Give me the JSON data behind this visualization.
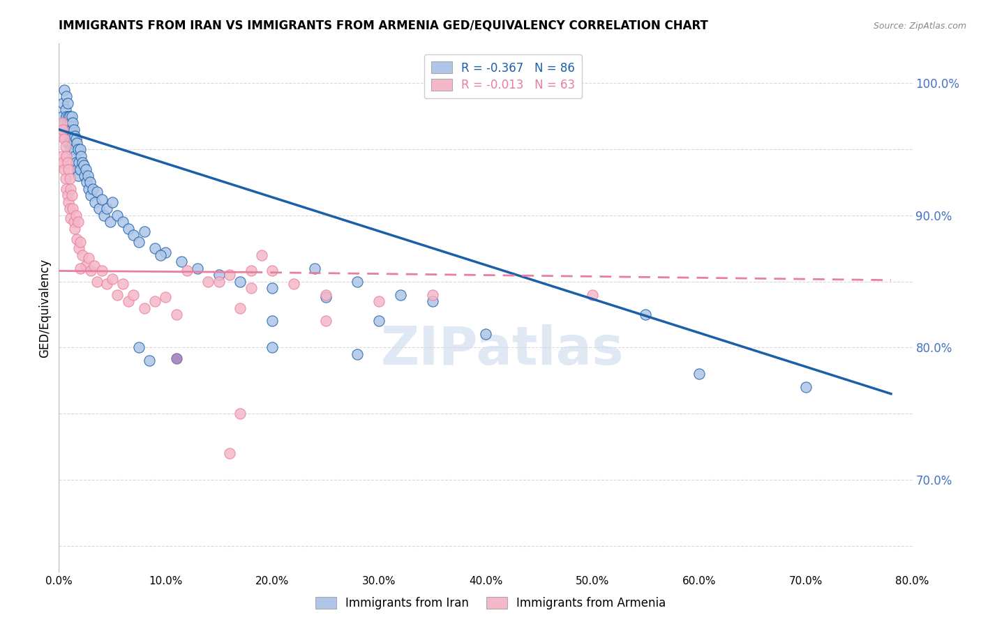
{
  "title": "IMMIGRANTS FROM IRAN VS IMMIGRANTS FROM ARMENIA GED/EQUIVALENCY CORRELATION CHART",
  "source": "Source: ZipAtlas.com",
  "ylabel": "GED/Equivalency",
  "ytick_vals": [
    1.0,
    0.9,
    0.8,
    0.7
  ],
  "ytick_labels": [
    "100.0%",
    "90.0%",
    "80.0%",
    "70.0%"
  ],
  "xtick_vals": [
    0.0,
    0.1,
    0.2,
    0.3,
    0.4,
    0.5,
    0.6,
    0.7,
    0.8
  ],
  "xtick_labels": [
    "0.0%",
    "10.0%",
    "20.0%",
    "30.0%",
    "40.0%",
    "50.0%",
    "60.0%",
    "70.0%",
    "80.0%"
  ],
  "xlim": [
    0.0,
    0.8
  ],
  "ylim": [
    0.63,
    1.03
  ],
  "legend_iran_r": "R = -0.367",
  "legend_iran_n": "N = 86",
  "legend_armenia_r": "R = -0.013",
  "legend_armenia_n": "N = 63",
  "iran_color": "#aec6e8",
  "armenia_color": "#f4b8c8",
  "iran_line_color": "#1a5fa8",
  "armenia_line_color": "#e87fa0",
  "watermark": "ZIPatlas",
  "watermark_color": "#ccdaec",
  "iran_trend_x": [
    0.0,
    0.78
  ],
  "iran_trend_y": [
    0.965,
    0.765
  ],
  "armenia_trend_x": [
    0.0,
    0.78
  ],
  "armenia_trend_y": [
    0.858,
    0.851
  ],
  "iran_x": [
    0.003,
    0.004,
    0.004,
    0.005,
    0.005,
    0.006,
    0.006,
    0.007,
    0.007,
    0.007,
    0.008,
    0.008,
    0.008,
    0.009,
    0.009,
    0.01,
    0.01,
    0.01,
    0.011,
    0.011,
    0.012,
    0.012,
    0.013,
    0.013,
    0.013,
    0.014,
    0.014,
    0.015,
    0.015,
    0.016,
    0.016,
    0.017,
    0.017,
    0.018,
    0.018,
    0.019,
    0.02,
    0.02,
    0.021,
    0.022,
    0.023,
    0.024,
    0.025,
    0.026,
    0.027,
    0.028,
    0.029,
    0.03,
    0.032,
    0.034,
    0.036,
    0.038,
    0.04,
    0.042,
    0.045,
    0.048,
    0.05,
    0.055,
    0.06,
    0.065,
    0.07,
    0.075,
    0.08,
    0.09,
    0.1,
    0.115,
    0.13,
    0.15,
    0.17,
    0.2,
    0.24,
    0.28,
    0.32,
    0.2,
    0.35,
    0.4,
    0.25,
    0.3,
    0.55,
    0.7,
    0.075,
    0.085,
    0.095,
    0.2,
    0.28,
    0.6
  ],
  "iran_y": [
    0.975,
    0.985,
    0.96,
    0.97,
    0.995,
    0.965,
    0.98,
    0.975,
    0.96,
    0.99,
    0.97,
    0.985,
    0.955,
    0.975,
    0.96,
    0.975,
    0.965,
    0.955,
    0.97,
    0.95,
    0.965,
    0.975,
    0.96,
    0.97,
    0.955,
    0.965,
    0.95,
    0.96,
    0.945,
    0.958,
    0.94,
    0.955,
    0.935,
    0.95,
    0.93,
    0.94,
    0.95,
    0.935,
    0.945,
    0.94,
    0.938,
    0.93,
    0.935,
    0.925,
    0.93,
    0.92,
    0.925,
    0.915,
    0.92,
    0.91,
    0.918,
    0.905,
    0.912,
    0.9,
    0.905,
    0.895,
    0.91,
    0.9,
    0.895,
    0.89,
    0.885,
    0.88,
    0.888,
    0.875,
    0.872,
    0.865,
    0.86,
    0.855,
    0.85,
    0.845,
    0.86,
    0.85,
    0.84,
    0.8,
    0.835,
    0.81,
    0.838,
    0.82,
    0.825,
    0.77,
    0.8,
    0.79,
    0.87,
    0.82,
    0.795,
    0.78
  ],
  "armenia_x": [
    0.002,
    0.003,
    0.003,
    0.004,
    0.004,
    0.005,
    0.005,
    0.006,
    0.006,
    0.007,
    0.007,
    0.008,
    0.008,
    0.009,
    0.009,
    0.01,
    0.01,
    0.011,
    0.011,
    0.012,
    0.013,
    0.014,
    0.015,
    0.016,
    0.017,
    0.018,
    0.019,
    0.02,
    0.022,
    0.025,
    0.028,
    0.03,
    0.033,
    0.036,
    0.04,
    0.045,
    0.05,
    0.055,
    0.06,
    0.065,
    0.07,
    0.08,
    0.09,
    0.1,
    0.11,
    0.12,
    0.14,
    0.16,
    0.18,
    0.22,
    0.25,
    0.19,
    0.17,
    0.15,
    0.25,
    0.3,
    0.18,
    0.5,
    0.2,
    0.35,
    0.17,
    0.02,
    0.16
  ],
  "armenia_y": [
    0.96,
    0.97,
    0.945,
    0.965,
    0.94,
    0.958,
    0.935,
    0.952,
    0.928,
    0.945,
    0.92,
    0.94,
    0.915,
    0.935,
    0.91,
    0.928,
    0.905,
    0.92,
    0.898,
    0.915,
    0.905,
    0.895,
    0.89,
    0.9,
    0.882,
    0.895,
    0.875,
    0.88,
    0.87,
    0.862,
    0.868,
    0.858,
    0.862,
    0.85,
    0.858,
    0.848,
    0.852,
    0.84,
    0.848,
    0.835,
    0.84,
    0.83,
    0.835,
    0.838,
    0.825,
    0.858,
    0.85,
    0.855,
    0.845,
    0.848,
    0.84,
    0.87,
    0.83,
    0.85,
    0.82,
    0.835,
    0.858,
    0.84,
    0.858,
    0.84,
    0.75,
    0.86,
    0.72
  ],
  "purple_x": [
    0.11
  ],
  "purple_y": [
    0.792
  ],
  "purple_color": "#9b7bb8"
}
